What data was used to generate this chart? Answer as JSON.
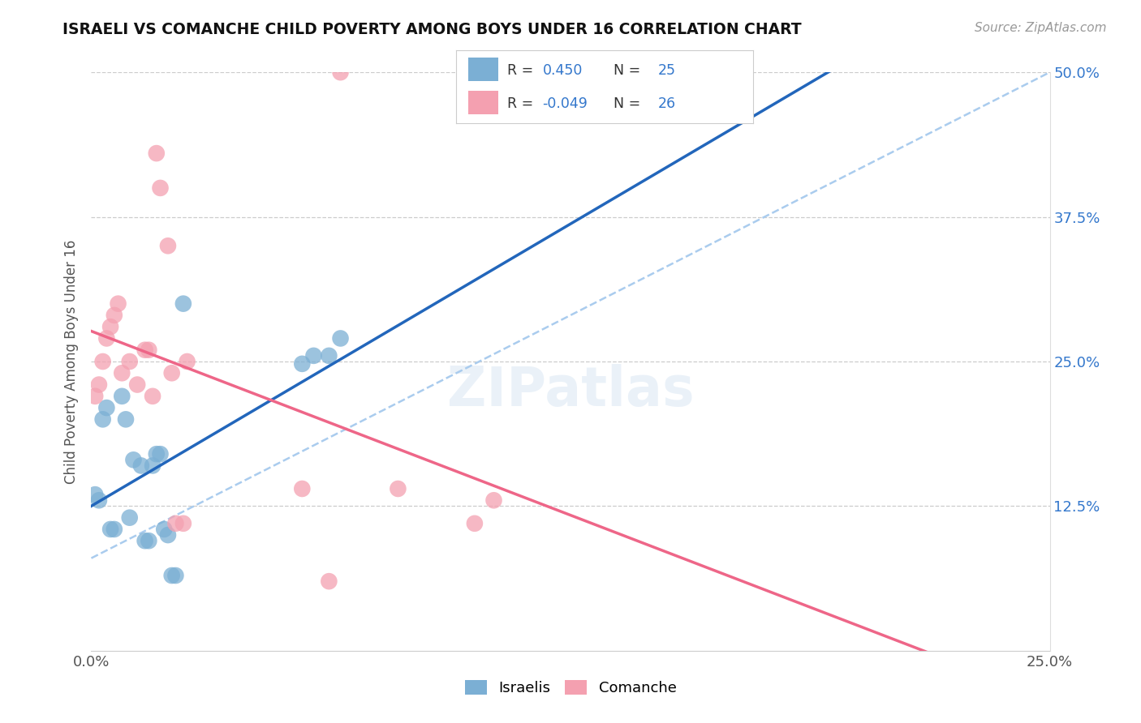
{
  "title": "ISRAELI VS COMANCHE CHILD POVERTY AMONG BOYS UNDER 16 CORRELATION CHART",
  "source": "Source: ZipAtlas.com",
  "ylabel": "Child Poverty Among Boys Under 16",
  "r_israelis": 0.45,
  "n_israelis": 25,
  "r_comanche": -0.049,
  "n_comanche": 26,
  "israelis_color": "#7bafd4",
  "comanche_color": "#f4a0b0",
  "israelis_line_color": "#2266bb",
  "comanche_line_color": "#ee6688",
  "dashed_line_color": "#aaccee",
  "xlim": [
    0.0,
    0.25
  ],
  "ylim": [
    0.0,
    0.5
  ],
  "ytick_vals": [
    0.125,
    0.25,
    0.375,
    0.5
  ],
  "ytick_labels": [
    "12.5%",
    "25.0%",
    "37.5%",
    "50.0%"
  ],
  "xtick_vals": [
    0.0,
    0.25
  ],
  "xtick_labels": [
    "0.0%",
    "25.0%"
  ],
  "israelis_x": [
    0.001,
    0.002,
    0.003,
    0.004,
    0.005,
    0.006,
    0.008,
    0.009,
    0.01,
    0.011,
    0.013,
    0.014,
    0.015,
    0.016,
    0.017,
    0.018,
    0.019,
    0.02,
    0.021,
    0.022,
    0.024,
    0.055,
    0.058,
    0.062,
    0.065
  ],
  "israelis_y": [
    0.135,
    0.13,
    0.2,
    0.21,
    0.105,
    0.105,
    0.22,
    0.2,
    0.115,
    0.165,
    0.16,
    0.095,
    0.095,
    0.16,
    0.17,
    0.17,
    0.105,
    0.1,
    0.065,
    0.065,
    0.3,
    0.248,
    0.255,
    0.255,
    0.27
  ],
  "comanche_x": [
    0.001,
    0.002,
    0.003,
    0.004,
    0.005,
    0.006,
    0.007,
    0.008,
    0.01,
    0.012,
    0.014,
    0.015,
    0.016,
    0.017,
    0.018,
    0.02,
    0.021,
    0.022,
    0.024,
    0.025,
    0.055,
    0.062,
    0.065,
    0.08,
    0.1,
    0.105
  ],
  "comanche_y": [
    0.22,
    0.23,
    0.25,
    0.27,
    0.28,
    0.29,
    0.3,
    0.24,
    0.25,
    0.23,
    0.26,
    0.26,
    0.22,
    0.43,
    0.4,
    0.35,
    0.24,
    0.11,
    0.11,
    0.25,
    0.14,
    0.06,
    0.5,
    0.14,
    0.11,
    0.13
  ]
}
